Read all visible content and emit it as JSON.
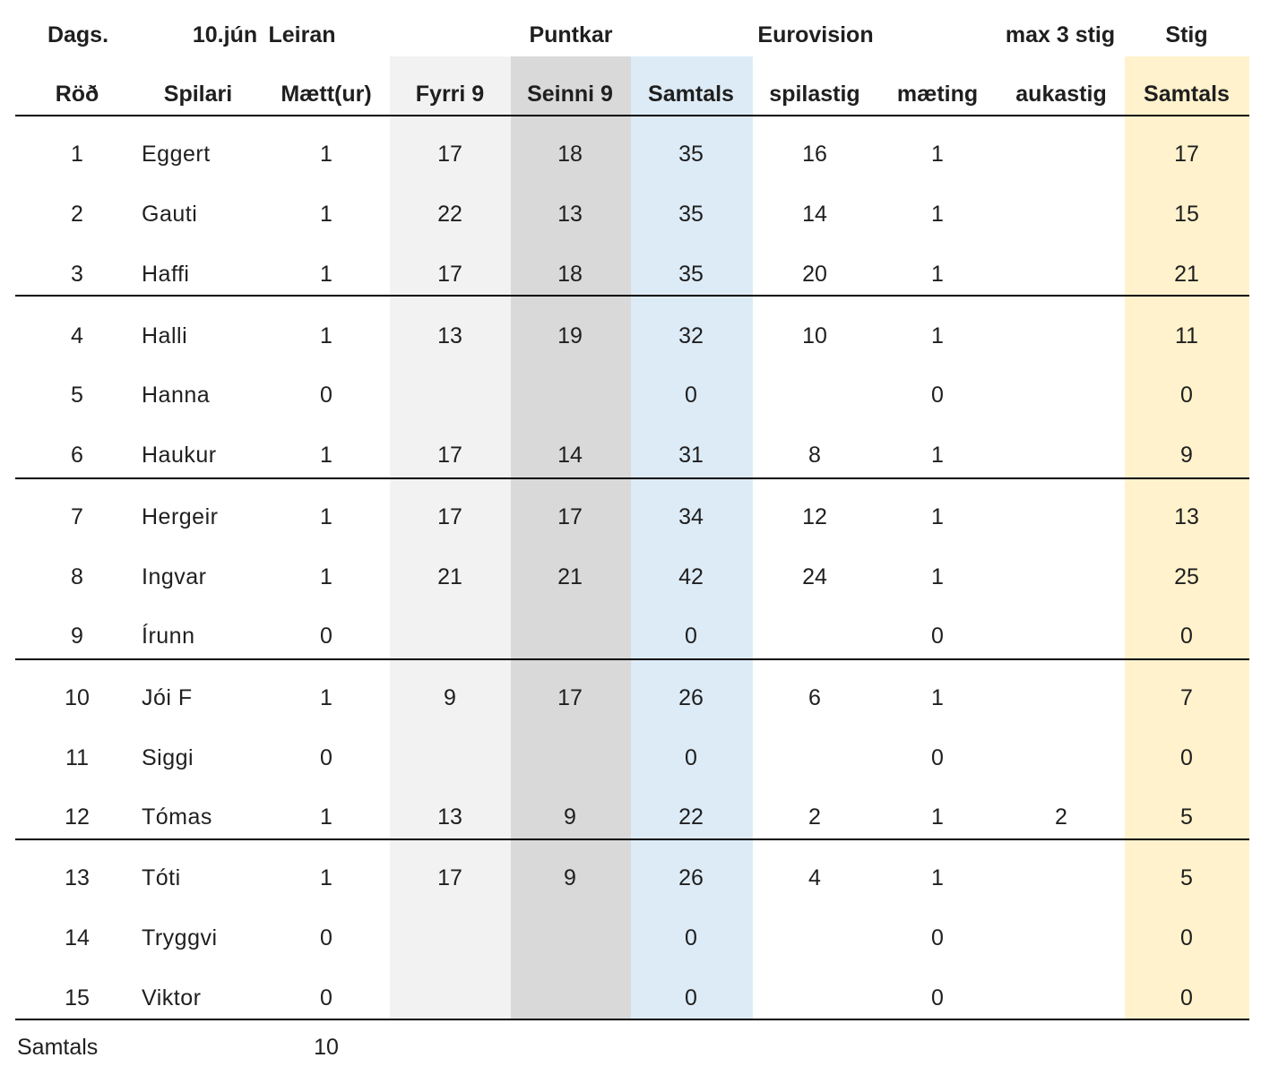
{
  "header_row1": {
    "dags": "Dags.",
    "date": "10.jún",
    "course": "Leiran",
    "puntkar": "Puntkar",
    "eurovision": "Eurovision",
    "max": "max 3 stig",
    "stig": "Stig"
  },
  "columns": [
    "Röð",
    "Spilari",
    "Mætt(ur)",
    "Fyrri 9",
    "Seinni 9",
    "Samtals",
    "spilastig",
    "mæting",
    "aukastig",
    "Samtals"
  ],
  "rows": [
    {
      "rod": "1",
      "spilari": "Eggert",
      "maett": "1",
      "fyrri": "17",
      "seinni": "18",
      "samtals": "35",
      "spilastig": "16",
      "maeting": "1",
      "aukastig": "",
      "stig": "17"
    },
    {
      "rod": "2",
      "spilari": "Gauti",
      "maett": "1",
      "fyrri": "22",
      "seinni": "13",
      "samtals": "35",
      "spilastig": "14",
      "maeting": "1",
      "aukastig": "",
      "stig": "15"
    },
    {
      "rod": "3",
      "spilari": "Haffi",
      "maett": "1",
      "fyrri": "17",
      "seinni": "18",
      "samtals": "35",
      "spilastig": "20",
      "maeting": "1",
      "aukastig": "",
      "stig": "21"
    },
    {
      "rod": "4",
      "spilari": "Halli",
      "maett": "1",
      "fyrri": "13",
      "seinni": "19",
      "samtals": "32",
      "spilastig": "10",
      "maeting": "1",
      "aukastig": "",
      "stig": "11"
    },
    {
      "rod": "5",
      "spilari": "Hanna",
      "maett": "0",
      "fyrri": "",
      "seinni": "",
      "samtals": "0",
      "spilastig": "",
      "maeting": "0",
      "aukastig": "",
      "stig": "0"
    },
    {
      "rod": "6",
      "spilari": "Haukur",
      "maett": "1",
      "fyrri": "17",
      "seinni": "14",
      "samtals": "31",
      "spilastig": "8",
      "maeting": "1",
      "aukastig": "",
      "stig": "9"
    },
    {
      "rod": "7",
      "spilari": "Hergeir",
      "maett": "1",
      "fyrri": "17",
      "seinni": "17",
      "samtals": "34",
      "spilastig": "12",
      "maeting": "1",
      "aukastig": "",
      "stig": "13"
    },
    {
      "rod": "8",
      "spilari": "Ingvar",
      "maett": "1",
      "fyrri": "21",
      "seinni": "21",
      "samtals": "42",
      "spilastig": "24",
      "maeting": "1",
      "aukastig": "",
      "stig": "25"
    },
    {
      "rod": "9",
      "spilari": "Írunn",
      "maett": "0",
      "fyrri": "",
      "seinni": "",
      "samtals": "0",
      "spilastig": "",
      "maeting": "0",
      "aukastig": "",
      "stig": "0"
    },
    {
      "rod": "10",
      "spilari": "Jói F",
      "maett": "1",
      "fyrri": "9",
      "seinni": "17",
      "samtals": "26",
      "spilastig": "6",
      "maeting": "1",
      "aukastig": "",
      "stig": "7"
    },
    {
      "rod": "11",
      "spilari": "Siggi",
      "maett": "0",
      "fyrri": "",
      "seinni": "",
      "samtals": "0",
      "spilastig": "",
      "maeting": "0",
      "aukastig": "",
      "stig": "0"
    },
    {
      "rod": "12",
      "spilari": "Tómas",
      "maett": "1",
      "fyrri": "13",
      "seinni": "9",
      "samtals": "22",
      "spilastig": "2",
      "maeting": "1",
      "aukastig": "2",
      "stig": "5"
    },
    {
      "rod": "13",
      "spilari": "Tóti",
      "maett": "1",
      "fyrri": "17",
      "seinni": "9",
      "samtals": "26",
      "spilastig": "4",
      "maeting": "1",
      "aukastig": "",
      "stig": "5"
    },
    {
      "rod": "14",
      "spilari": "Tryggvi",
      "maett": "0",
      "fyrri": "",
      "seinni": "",
      "samtals": "0",
      "spilastig": "",
      "maeting": "0",
      "aukastig": "",
      "stig": "0"
    },
    {
      "rod": "15",
      "spilari": "Viktor",
      "maett": "0",
      "fyrri": "",
      "seinni": "",
      "samtals": "0",
      "spilastig": "",
      "maeting": "0",
      "aukastig": "",
      "stig": "0"
    }
  ],
  "footer": {
    "label": "Samtals",
    "total": "10"
  }
}
